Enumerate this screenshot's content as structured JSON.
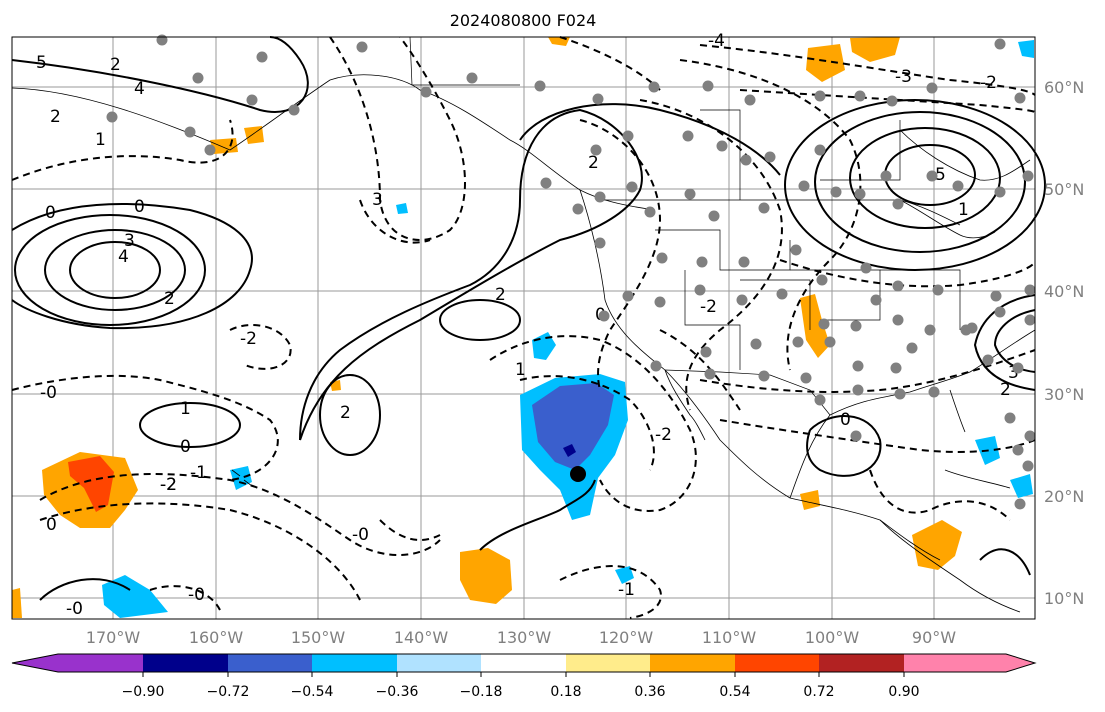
{
  "title": "2024080800 F024",
  "map": {
    "lon_labels": [
      "170°W",
      "160°W",
      "150°W",
      "140°W",
      "130°W",
      "120°W",
      "110°W",
      "100°W",
      "90°W"
    ],
    "lat_labels": [
      "60°N",
      "50°N",
      "40°N",
      "30°N",
      "20°N",
      "10°N"
    ],
    "contour_labels": [
      "5",
      "4",
      "2",
      "1",
      "0",
      "3",
      "4",
      "2",
      "-2",
      "1",
      "0",
      "-1",
      "-2",
      "-0",
      "5",
      "3",
      "2",
      "1",
      "0",
      "-2",
      "0",
      "-1",
      "2",
      "-0",
      "2",
      "3",
      "0",
      "-2",
      "-0",
      "-0",
      "-4",
      "-3",
      "-2",
      "0",
      "2",
      "-2",
      "2",
      "1"
    ]
  },
  "colorbar": {
    "tick_labels": [
      "−0.90",
      "−0.72",
      "−0.54",
      "−0.36",
      "−0.18",
      "0.18",
      "0.36",
      "0.54",
      "0.72",
      "0.90"
    ],
    "colors": [
      "#9932CC",
      "#00008B",
      "#3A5FCD",
      "#00BFFF",
      "#B0E2FF",
      "#FFFFFF",
      "#FFEC8B",
      "#FFA500",
      "#FF4500",
      "#B22222",
      "#FF82AB"
    ]
  },
  "markers": {
    "dot_color": "#808080",
    "center_color": "#000000"
  }
}
